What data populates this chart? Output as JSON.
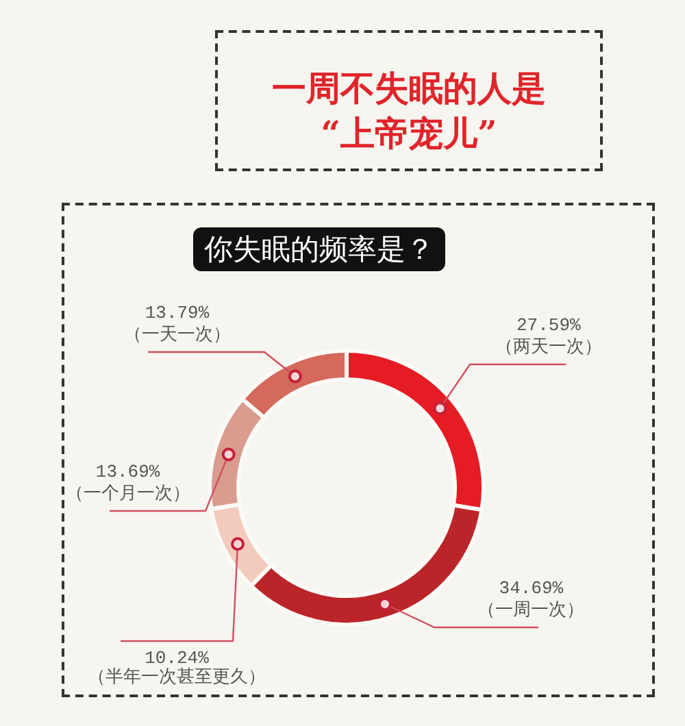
{
  "chart_data": {
    "type": "donut",
    "title": "一周不失眠的人是\n“上帝宠儿”",
    "subtitle": "你失眠的频率是？",
    "categories": [
      "（两天一次）",
      "（一周一次）",
      "（半年一次甚至更久）",
      "（一个月一次）",
      "（一天一次）"
    ],
    "values": [
      27.59,
      34.69,
      10.24,
      13.69,
      13.79
    ],
    "value_labels": [
      "27.59%",
      "34.69%",
      "10.24%",
      "13.69%",
      "13.79%"
    ],
    "colors": [
      "#e51c23",
      "#bb2529",
      "#f3cbbd",
      "#d99c8e",
      "#d4695c"
    ]
  }
}
